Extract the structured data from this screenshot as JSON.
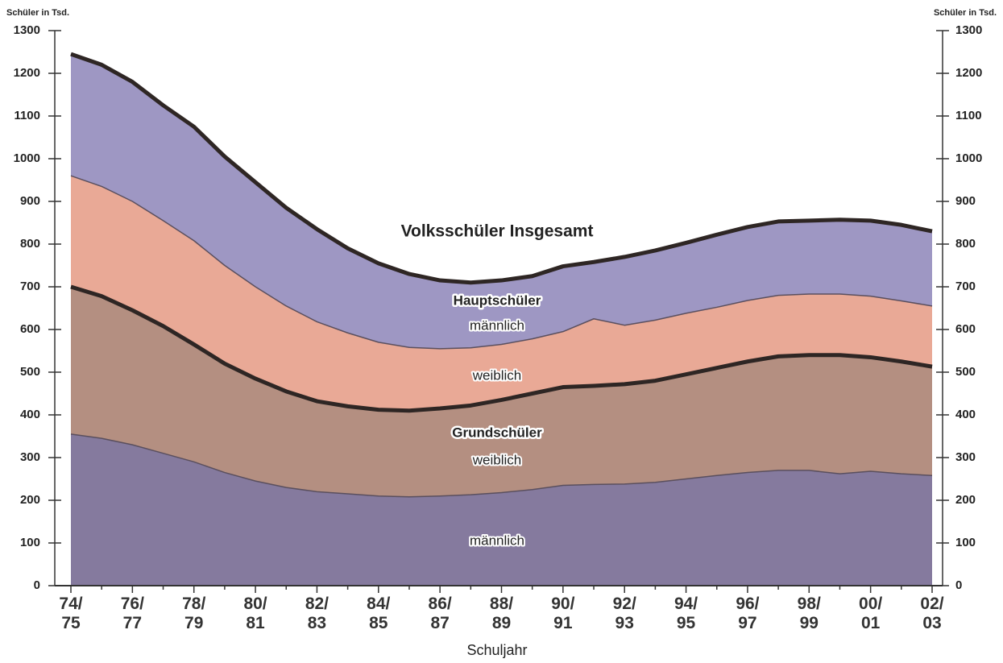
{
  "chart_data": {
    "type": "stacked-area",
    "y_label": "Schüler in Tsd.",
    "x_label": "Schuljahr",
    "annotations": [
      "Volksschüler Insgesamt",
      "Hauptschüler",
      "Grundschüler"
    ],
    "categories": [
      "74/\n75",
      null,
      "76/\n77",
      null,
      "78/\n79",
      null,
      "80/\n81",
      null,
      "82/\n83",
      null,
      "84/\n85",
      null,
      "86/\n87",
      null,
      "88/\n89",
      null,
      "90/\n91",
      null,
      "92/\n93",
      null,
      "94/\n95",
      null,
      "96/\n97",
      null,
      "98/\n99",
      null,
      "00/\n01",
      null,
      "02/\n03"
    ],
    "series": [
      {
        "name": "männlich",
        "color": "#857a9e",
        "values": [
          355,
          345,
          330,
          310,
          290,
          265,
          245,
          230,
          220,
          215,
          210,
          208,
          210,
          213,
          218,
          225,
          235,
          237,
          238,
          242,
          250,
          258,
          265,
          270,
          270,
          262,
          268,
          262,
          258
        ]
      },
      {
        "name": "weiblich",
        "color": "#b48f81",
        "values": [
          345,
          333,
          315,
          298,
          275,
          255,
          240,
          225,
          212,
          205,
          202,
          202,
          205,
          209,
          217,
          225,
          230,
          231,
          234,
          238,
          245,
          252,
          260,
          267,
          270,
          278,
          267,
          263,
          255
        ]
      },
      {
        "name": "weiblich",
        "color": "#e9a996",
        "values": [
          260,
          257,
          255,
          247,
          243,
          230,
          215,
          200,
          186,
          172,
          158,
          148,
          140,
          135,
          130,
          128,
          130,
          157,
          138,
          142,
          143,
          142,
          143,
          143,
          143,
          143,
          143,
          142,
          142
        ]
      },
      {
        "name": "männlich",
        "color": "#9e97c3",
        "values": [
          285,
          285,
          280,
          270,
          267,
          255,
          245,
          230,
          217,
          198,
          185,
          172,
          160,
          153,
          150,
          147,
          153,
          133,
          160,
          163,
          165,
          170,
          172,
          173,
          172,
          174,
          177,
          178,
          175
        ]
      }
    ],
    "ylim": [
      0,
      1300
    ],
    "yticks": [
      0,
      100,
      200,
      300,
      400,
      500,
      600,
      700,
      800,
      900,
      1000,
      1100,
      1200,
      1300
    ]
  }
}
